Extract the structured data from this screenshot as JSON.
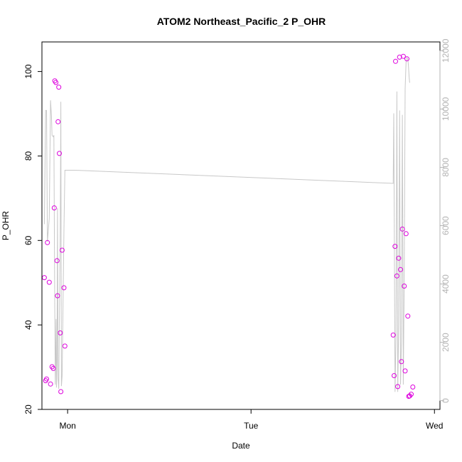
{
  "chart_data": {
    "type": "scatter",
    "title": "ATOM2 Northeast_Pacific_2 P_OHR",
    "xlabel": "Date",
    "ylabel": "P_OHR",
    "x_unit": "day",
    "xlim": [
      -0.14,
      2.03
    ],
    "ylim": [
      20,
      107
    ],
    "y2lim": [
      -300,
      12300
    ],
    "grid": false,
    "x_ticks": [
      {
        "value": 0,
        "label": "Mon"
      },
      {
        "value": 1,
        "label": "Tue"
      },
      {
        "value": 2,
        "label": "Wed"
      }
    ],
    "y_ticks": [
      {
        "value": 20,
        "label": "20"
      },
      {
        "value": 40,
        "label": "40"
      },
      {
        "value": 60,
        "label": "60"
      },
      {
        "value": 80,
        "label": "80"
      },
      {
        "value": 100,
        "label": "100"
      }
    ],
    "y2_ticks": [
      {
        "value": 0,
        "label": "0"
      },
      {
        "value": 2000,
        "label": "2000"
      },
      {
        "value": 4000,
        "label": "4000"
      },
      {
        "value": 6000,
        "label": "6000"
      },
      {
        "value": 8000,
        "label": "8000"
      },
      {
        "value": 10000,
        "label": "10000"
      },
      {
        "value": 12000,
        "label": "12000"
      }
    ],
    "colors": {
      "points": "#dd00dd",
      "line": "#c8c8c8",
      "right_axis": "#b3b3b3",
      "axes": "#000000"
    },
    "series": [
      {
        "type": "scatter",
        "axis": "left",
        "points": [
          [
            -0.127,
            51.2
          ],
          [
            -0.12,
            26.8
          ],
          [
            -0.115,
            27.2
          ],
          [
            -0.11,
            59.5
          ],
          [
            -0.1,
            50.1
          ],
          [
            -0.093,
            26.0
          ],
          [
            -0.085,
            30.1
          ],
          [
            -0.078,
            29.7
          ],
          [
            -0.073,
            67.7
          ],
          [
            -0.07,
            97.8
          ],
          [
            -0.064,
            97.4
          ],
          [
            -0.058,
            55.2
          ],
          [
            -0.055,
            46.9
          ],
          [
            -0.052,
            88.1
          ],
          [
            -0.048,
            96.3
          ],
          [
            -0.045,
            80.6
          ],
          [
            -0.04,
            38.1
          ],
          [
            -0.037,
            24.2
          ],
          [
            -0.03,
            57.7
          ],
          [
            -0.02,
            48.8
          ],
          [
            -0.015,
            35.0
          ],
          [
            1.775,
            37.6
          ],
          [
            1.78,
            28.0
          ],
          [
            1.785,
            58.6
          ],
          [
            1.788,
            102.4
          ],
          [
            1.795,
            51.6
          ],
          [
            1.8,
            25.4
          ],
          [
            1.805,
            55.8
          ],
          [
            1.81,
            103.4
          ],
          [
            1.815,
            53.1
          ],
          [
            1.82,
            31.3
          ],
          [
            1.825,
            62.7
          ],
          [
            1.83,
            103.6
          ],
          [
            1.835,
            49.2
          ],
          [
            1.84,
            29.1
          ],
          [
            1.845,
            61.6
          ],
          [
            1.85,
            103.0
          ],
          [
            1.855,
            42.1
          ],
          [
            1.86,
            23.1
          ],
          [
            1.865,
            23.2
          ],
          [
            1.873,
            23.6
          ],
          [
            1.882,
            25.3
          ]
        ]
      },
      {
        "type": "line",
        "axis": "right",
        "points": [
          [
            -0.127,
            6050
          ],
          [
            -0.12,
            9950
          ],
          [
            -0.115,
            9950
          ],
          [
            -0.11,
            5450
          ],
          [
            -0.1,
            6250
          ],
          [
            -0.093,
            10300
          ],
          [
            -0.088,
            9750
          ],
          [
            -0.085,
            9100
          ],
          [
            -0.078,
            9050
          ],
          [
            -0.075,
            9100
          ],
          [
            -0.07,
            3000
          ],
          [
            -0.067,
            550
          ],
          [
            -0.063,
            2800
          ],
          [
            -0.061,
            450
          ],
          [
            -0.058,
            1350
          ],
          [
            -0.055,
            6600
          ],
          [
            -0.052,
            750
          ],
          [
            -0.048,
            400
          ],
          [
            -0.045,
            2650
          ],
          [
            -0.04,
            6000
          ],
          [
            -0.037,
            10250
          ],
          [
            -0.034,
            500
          ],
          [
            -0.03,
            850
          ],
          [
            -0.02,
            5900
          ],
          [
            -0.015,
            7900
          ],
          [
            0.04,
            7900
          ],
          [
            1.775,
            7450
          ],
          [
            1.778,
            9850
          ],
          [
            1.785,
            300
          ],
          [
            1.79,
            2150
          ],
          [
            1.795,
            10600
          ],
          [
            1.8,
            300
          ],
          [
            1.805,
            2600
          ],
          [
            1.81,
            9950
          ],
          [
            1.815,
            550
          ],
          [
            1.82,
            2050
          ],
          [
            1.825,
            9800
          ],
          [
            1.83,
            550
          ],
          [
            1.835,
            4150
          ],
          [
            1.84,
            10700
          ],
          [
            1.845,
            11600
          ],
          [
            1.85,
            11750
          ],
          [
            1.855,
            11700
          ],
          [
            1.858,
            11500
          ],
          [
            1.862,
            11100
          ],
          [
            1.865,
            10900
          ]
        ]
      }
    ]
  }
}
